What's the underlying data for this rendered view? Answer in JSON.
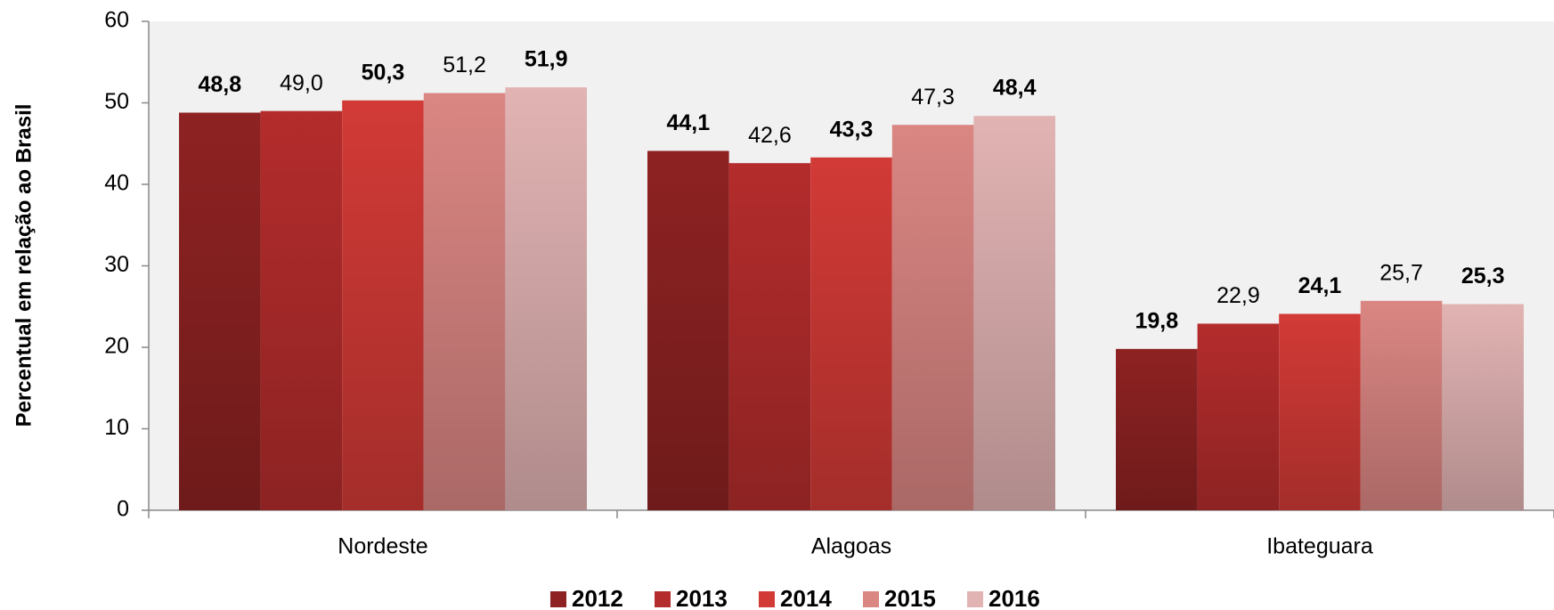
{
  "chart_data": {
    "type": "bar",
    "y_label": "Percentual em relação ao Brasil",
    "categories": [
      "Nordeste",
      "Alagoas",
      "Ibateguara"
    ],
    "series": [
      {
        "name": "2012",
        "color": "#8e2222",
        "values": [
          48.8,
          44.1,
          19.8
        ],
        "value_labels": [
          "48,8",
          "44,1",
          "19,8"
        ]
      },
      {
        "name": "2013",
        "color": "#b42c2c",
        "values": [
          49.0,
          42.6,
          22.9
        ],
        "value_labels": [
          "49,0",
          "42,6",
          "22,9"
        ]
      },
      {
        "name": "2014",
        "color": "#d23a36",
        "values": [
          50.3,
          43.3,
          24.1
        ],
        "value_labels": [
          "50,3",
          "43,3",
          "24,1"
        ]
      },
      {
        "name": "2015",
        "color": "#da8683",
        "values": [
          51.2,
          47.3,
          25.7
        ],
        "value_labels": [
          "51,2",
          "47,3",
          "25,7"
        ]
      },
      {
        "name": "2016",
        "color": "#e2b3b3",
        "values": [
          51.9,
          48.4,
          25.3
        ],
        "value_labels": [
          "51,9",
          "48,4",
          "25,3"
        ]
      }
    ],
    "ylim": [
      0,
      60
    ],
    "yticks": [
      0,
      10,
      20,
      30,
      40,
      50,
      60
    ]
  }
}
